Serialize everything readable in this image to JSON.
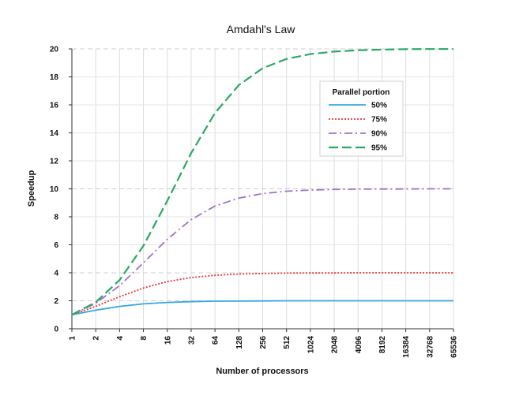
{
  "chart_data": {
    "type": "line",
    "title": "Amdahl's Law",
    "xlabel": "Number of processors",
    "ylabel": "Speedup",
    "x_scale": "log2",
    "x": [
      1,
      2,
      4,
      8,
      16,
      32,
      64,
      128,
      256,
      512,
      1024,
      2048,
      4096,
      8192,
      16384,
      32768,
      65536
    ],
    "x_tick_labels": [
      "1",
      "2",
      "4",
      "8",
      "16",
      "32",
      "64",
      "128",
      "256",
      "512",
      "1024",
      "2048",
      "4096",
      "8192",
      "16384",
      "32768",
      "65536"
    ],
    "y_ticks": [
      0,
      2,
      4,
      6,
      8,
      10,
      12,
      14,
      16,
      18,
      20
    ],
    "ylim": [
      0,
      20
    ],
    "grid": true,
    "legend": {
      "title": "Parallel portion",
      "placement": "top-right"
    },
    "series": [
      {
        "name": "50%",
        "color": "#33a8e0",
        "style": "solid",
        "values": [
          1.0,
          1.33,
          1.6,
          1.78,
          1.88,
          1.94,
          1.97,
          1.98,
          1.99,
          2.0,
          2.0,
          2.0,
          2.0,
          2.0,
          2.0,
          2.0,
          2.0
        ]
      },
      {
        "name": "75%",
        "color": "#e8343a",
        "style": "dotted",
        "values": [
          1.0,
          1.6,
          2.29,
          2.91,
          3.37,
          3.66,
          3.82,
          3.91,
          3.95,
          3.98,
          3.99,
          3.99,
          4.0,
          4.0,
          4.0,
          4.0,
          4.0
        ]
      },
      {
        "name": "90%",
        "color": "#a072c8",
        "style": "dashdot",
        "values": [
          1.0,
          1.82,
          3.08,
          4.71,
          6.4,
          7.8,
          8.77,
          9.34,
          9.66,
          9.83,
          9.91,
          9.96,
          9.98,
          9.99,
          9.99,
          10.0,
          10.0
        ]
      },
      {
        "name": "95%",
        "color": "#2aa864",
        "style": "dashed",
        "values": [
          1.0,
          1.9,
          3.48,
          5.93,
          9.14,
          12.55,
          15.42,
          17.41,
          18.62,
          19.28,
          19.63,
          19.81,
          19.9,
          19.95,
          19.98,
          19.99,
          19.99
        ]
      }
    ]
  }
}
